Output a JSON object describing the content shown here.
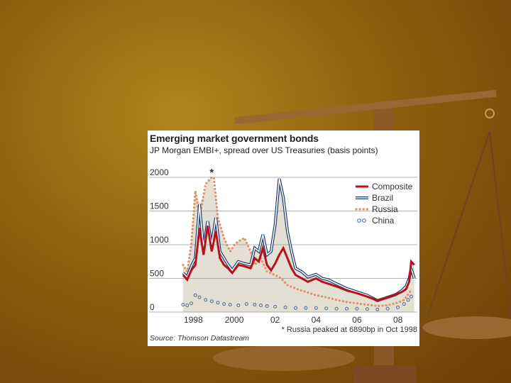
{
  "colors": {
    "composite": "#b5121b",
    "brazil": "#1f3b6e",
    "russia": "#e0916a",
    "china": "#4a6a9e",
    "shade": "#e3dfd2",
    "background": "#8e5f0e"
  },
  "chart_data": {
    "type": "line",
    "title": "Emerging market government bonds",
    "subtitle": "JP Morgan EMBI+, spread over US Treasuries (basis points)",
    "source": "Source: Thomson Datastream",
    "footnote": "* Russia peaked at 6890bp in Oct 1998",
    "asterisk": "*",
    "asterisk_x": 1998.9,
    "ylim": [
      0,
      2000
    ],
    "xlim": [
      1997.5,
      2008.95
    ],
    "y_ticks": [
      {
        "value": 0,
        "label": "0"
      },
      {
        "value": 500,
        "label": "500"
      },
      {
        "value": 1000,
        "label": "1000"
      },
      {
        "value": 1500,
        "label": "1500"
      },
      {
        "value": 2000,
        "label": "2000"
      }
    ],
    "x_ticks": [
      {
        "value": 1998,
        "label": "1998"
      },
      {
        "value": 2000,
        "label": "2000"
      },
      {
        "value": 2002,
        "label": "02"
      },
      {
        "value": 2004,
        "label": "04"
      },
      {
        "value": 2006,
        "label": "06"
      },
      {
        "value": 2008,
        "label": "08"
      }
    ],
    "grid": true,
    "legend_position": "top-right",
    "series": [
      {
        "name": "Composite",
        "style": "solid",
        "x": [
          1997.5,
          1997.7,
          1997.9,
          1998.1,
          1998.3,
          1998.5,
          1998.7,
          1998.9,
          1999.1,
          1999.3,
          1999.5,
          1999.7,
          1999.9,
          2000.2,
          2000.5,
          2000.8,
          2001.0,
          2001.2,
          2001.4,
          2001.6,
          2001.8,
          2002.0,
          2002.2,
          2002.4,
          2002.6,
          2002.8,
          2003.0,
          2003.3,
          2003.6,
          2004.0,
          2004.3,
          2004.6,
          2005.0,
          2005.5,
          2006.0,
          2006.5,
          2007.0,
          2007.3,
          2007.6,
          2007.9,
          2008.2,
          2008.4,
          2008.55,
          2008.65,
          2008.8
        ],
        "y": [
          550,
          480,
          620,
          700,
          1250,
          850,
          1280,
          900,
          1200,
          800,
          700,
          650,
          580,
          700,
          680,
          650,
          800,
          750,
          950,
          700,
          620,
          720,
          850,
          950,
          800,
          650,
          550,
          500,
          450,
          500,
          450,
          420,
          380,
          320,
          280,
          230,
          170,
          200,
          230,
          260,
          300,
          340,
          450,
          750,
          700
        ]
      },
      {
        "name": "Brazil",
        "style": "double",
        "x": [
          1997.5,
          1997.7,
          1997.9,
          1998.1,
          1998.3,
          1998.5,
          1998.7,
          1998.9,
          1999.1,
          1999.3,
          1999.5,
          1999.7,
          1999.9,
          2000.2,
          2000.5,
          2000.8,
          2001.0,
          2001.2,
          2001.4,
          2001.6,
          2001.8,
          2002.0,
          2002.2,
          2002.4,
          2002.6,
          2002.8,
          2003.0,
          2003.3,
          2003.6,
          2004.0,
          2004.3,
          2004.6,
          2005.0,
          2005.5,
          2006.0,
          2006.5,
          2007.0,
          2007.3,
          2007.6,
          2007.9,
          2008.2,
          2008.4,
          2008.55,
          2008.65,
          2008.8
        ],
        "y": [
          580,
          520,
          680,
          800,
          1600,
          950,
          1350,
          1000,
          1400,
          900,
          800,
          700,
          620,
          750,
          720,
          700,
          950,
          900,
          1150,
          850,
          900,
          1300,
          1980,
          1700,
          1200,
          900,
          650,
          600,
          520,
          560,
          500,
          480,
          420,
          350,
          300,
          250,
          170,
          200,
          230,
          260,
          320,
          380,
          500,
          650,
          500
        ]
      },
      {
        "name": "Russia",
        "style": "dotted",
        "x": [
          1997.5,
          1997.7,
          1997.9,
          1998.1,
          1998.3,
          1998.6,
          1998.9,
          1999.0,
          1999.2,
          1999.5,
          1999.8,
          2000.0,
          2000.2,
          2000.5,
          2000.8,
          2001.0,
          2001.3,
          2001.6,
          2002.0,
          2002.3,
          2002.6,
          2003.0,
          2003.5,
          2004.0,
          2004.5,
          2005.0,
          2005.5,
          2006.0,
          2006.5,
          2007.0,
          2007.5,
          2008.0,
          2008.3,
          2008.5,
          2008.65
        ],
        "y": [
          700,
          600,
          1000,
          1800,
          1400,
          1900,
          2000,
          2000,
          1400,
          1100,
          900,
          1000,
          1050,
          1100,
          900,
          700,
          800,
          600,
          550,
          500,
          400,
          350,
          300,
          250,
          220,
          180,
          150,
          130,
          110,
          90,
          100,
          140,
          180,
          260,
          330
        ]
      },
      {
        "name": "China",
        "style": "circles",
        "x": [
          1997.5,
          1997.7,
          1997.9,
          1998.1,
          1998.3,
          1998.6,
          1998.9,
          1999.2,
          1999.5,
          1999.8,
          2000.2,
          2000.6,
          2001.0,
          2001.3,
          2001.6,
          2002.0,
          2002.5,
          2003.0,
          2003.5,
          2004.0,
          2004.5,
          2005.0,
          2005.5,
          2006.0,
          2006.5,
          2007.0,
          2007.5,
          2008.0,
          2008.3,
          2008.5,
          2008.65
        ],
        "y": [
          110,
          100,
          130,
          250,
          220,
          180,
          160,
          140,
          120,
          110,
          100,
          120,
          110,
          100,
          90,
          80,
          70,
          60,
          60,
          60,
          55,
          50,
          50,
          50,
          45,
          40,
          50,
          70,
          120,
          180,
          230
        ]
      }
    ]
  }
}
